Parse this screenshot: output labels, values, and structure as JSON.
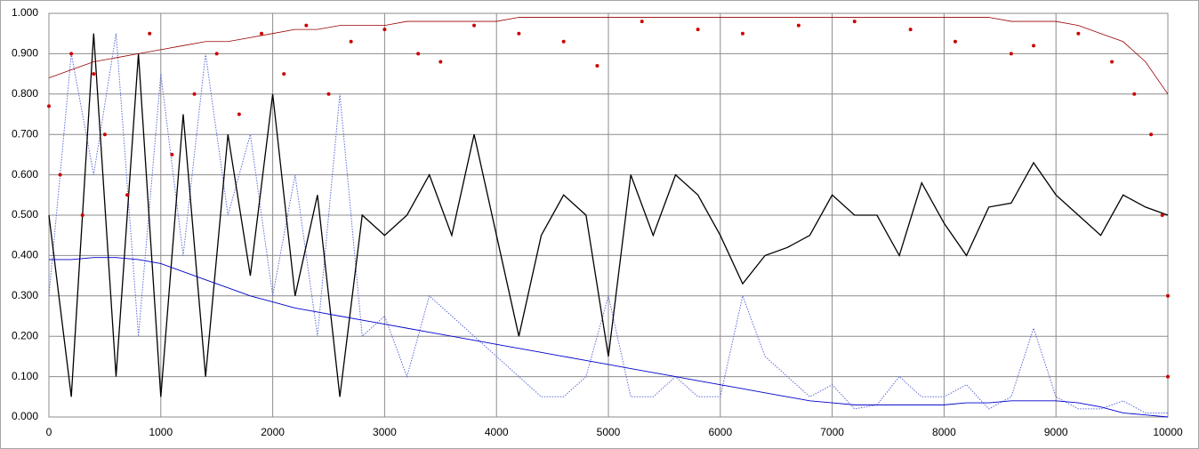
{
  "chart_data": {
    "type": "line",
    "x": [
      0,
      200,
      400,
      600,
      800,
      1000,
      1200,
      1400,
      1600,
      1800,
      2000,
      2200,
      2400,
      2600,
      2800,
      3000,
      3200,
      3400,
      3600,
      3800,
      4000,
      4200,
      4400,
      4600,
      4800,
      5000,
      5200,
      5400,
      5600,
      5800,
      6000,
      6200,
      6400,
      6600,
      6800,
      7000,
      7200,
      7400,
      7600,
      7800,
      8000,
      8200,
      8400,
      8600,
      8800,
      9000,
      9200,
      9400,
      9600,
      9800,
      10000
    ],
    "series": [
      {
        "type": "line",
        "color": "#5b6bd6",
        "dashed": true,
        "width": 1,
        "values": [
          0.3,
          0.9,
          0.6,
          0.95,
          0.2,
          0.85,
          0.4,
          0.9,
          0.5,
          0.7,
          0.3,
          0.6,
          0.2,
          0.8,
          0.2,
          0.25,
          0.1,
          0.3,
          0.25,
          0.2,
          0.15,
          0.1,
          0.05,
          0.05,
          0.1,
          0.3,
          0.05,
          0.05,
          0.1,
          0.05,
          0.05,
          0.3,
          0.15,
          0.1,
          0.05,
          0.08,
          0.02,
          0.03,
          0.1,
          0.05,
          0.05,
          0.08,
          0.02,
          0.05,
          0.22,
          0.05,
          0.02,
          0.02,
          0.04,
          0.01,
          0.01
        ]
      },
      {
        "type": "line",
        "color": "#000000",
        "dashed": false,
        "width": 1.3,
        "values": [
          0.5,
          0.05,
          0.95,
          0.1,
          0.9,
          0.05,
          0.75,
          0.1,
          0.7,
          0.35,
          0.8,
          0.3,
          0.55,
          0.05,
          0.5,
          0.45,
          0.5,
          0.6,
          0.45,
          0.7,
          0.45,
          0.2,
          0.45,
          0.55,
          0.5,
          0.15,
          0.6,
          0.45,
          0.6,
          0.55,
          0.45,
          0.33,
          0.4,
          0.42,
          0.45,
          0.55,
          0.5,
          0.5,
          0.4,
          0.58,
          0.48,
          0.4,
          0.52,
          0.53,
          0.63,
          0.55,
          0.5,
          0.45,
          0.55,
          0.52,
          0.5
        ]
      },
      {
        "type": "scatter",
        "color": "#cc0000",
        "x": [
          0,
          100,
          200,
          300,
          400,
          500,
          700,
          900,
          1100,
          1300,
          1500,
          1700,
          1900,
          2100,
          2300,
          2500,
          2700,
          3000,
          3300,
          3500,
          3800,
          4200,
          4600,
          4900,
          5300,
          5800,
          6200,
          6700,
          7200,
          7700,
          8100,
          8600,
          8800,
          9200,
          9500,
          9700,
          9850,
          9950,
          10000,
          10000
        ],
        "values": [
          0.77,
          0.6,
          0.9,
          0.5,
          0.85,
          0.7,
          0.55,
          0.95,
          0.65,
          0.8,
          0.9,
          0.75,
          0.95,
          0.85,
          0.97,
          0.8,
          0.93,
          0.96,
          0.9,
          0.88,
          0.97,
          0.95,
          0.93,
          0.87,
          0.98,
          0.96,
          0.95,
          0.97,
          0.98,
          0.96,
          0.93,
          0.9,
          0.92,
          0.95,
          0.88,
          0.8,
          0.7,
          0.5,
          0.3,
          0.1
        ]
      },
      {
        "type": "line",
        "color": "#990000",
        "dashed": false,
        "width": 0.8,
        "values": [
          0.84,
          0.86,
          0.88,
          0.89,
          0.9,
          0.91,
          0.92,
          0.93,
          0.93,
          0.94,
          0.95,
          0.96,
          0.96,
          0.97,
          0.97,
          0.97,
          0.98,
          0.98,
          0.98,
          0.98,
          0.98,
          0.99,
          0.99,
          0.99,
          0.99,
          0.99,
          0.99,
          0.99,
          0.99,
          0.99,
          0.99,
          0.99,
          0.99,
          0.99,
          0.99,
          0.99,
          0.99,
          0.99,
          0.99,
          0.99,
          0.99,
          0.99,
          0.99,
          0.98,
          0.98,
          0.98,
          0.97,
          0.95,
          0.93,
          0.88,
          0.8
        ]
      },
      {
        "type": "line",
        "color": "#0000cc",
        "dashed": false,
        "width": 0.9,
        "values": [
          0.39,
          0.39,
          0.395,
          0.395,
          0.39,
          0.38,
          0.36,
          0.34,
          0.32,
          0.3,
          0.285,
          0.27,
          0.26,
          0.25,
          0.24,
          0.23,
          0.22,
          0.21,
          0.2,
          0.19,
          0.18,
          0.17,
          0.16,
          0.15,
          0.14,
          0.13,
          0.12,
          0.11,
          0.1,
          0.09,
          0.08,
          0.07,
          0.06,
          0.05,
          0.04,
          0.035,
          0.03,
          0.03,
          0.03,
          0.03,
          0.03,
          0.035,
          0.035,
          0.04,
          0.04,
          0.04,
          0.035,
          0.025,
          0.01,
          0.005,
          0
        ]
      }
    ],
    "xlim": [
      0,
      10000
    ],
    "xticks": [
      0,
      1000,
      2000,
      3000,
      4000,
      5000,
      6000,
      7000,
      8000,
      9000,
      10000
    ],
    "ylim": [
      0,
      1
    ],
    "yticks": [
      {
        "value": 0,
        "label": "0.000"
      },
      {
        "value": 0.1,
        "label": "0.100"
      },
      {
        "value": 0.2,
        "label": "0.200"
      },
      {
        "value": 0.3,
        "label": "0.300"
      },
      {
        "value": 0.4,
        "label": "0.400"
      },
      {
        "value": 0.5,
        "label": "0.500"
      },
      {
        "value": 0.6,
        "label": "0.600"
      },
      {
        "value": 0.7,
        "label": "0.700"
      },
      {
        "value": 0.8,
        "label": "0.800"
      },
      {
        "value": 0.9,
        "label": "0.900"
      },
      {
        "value": 1,
        "label": "1.000"
      }
    ],
    "grid": true
  }
}
